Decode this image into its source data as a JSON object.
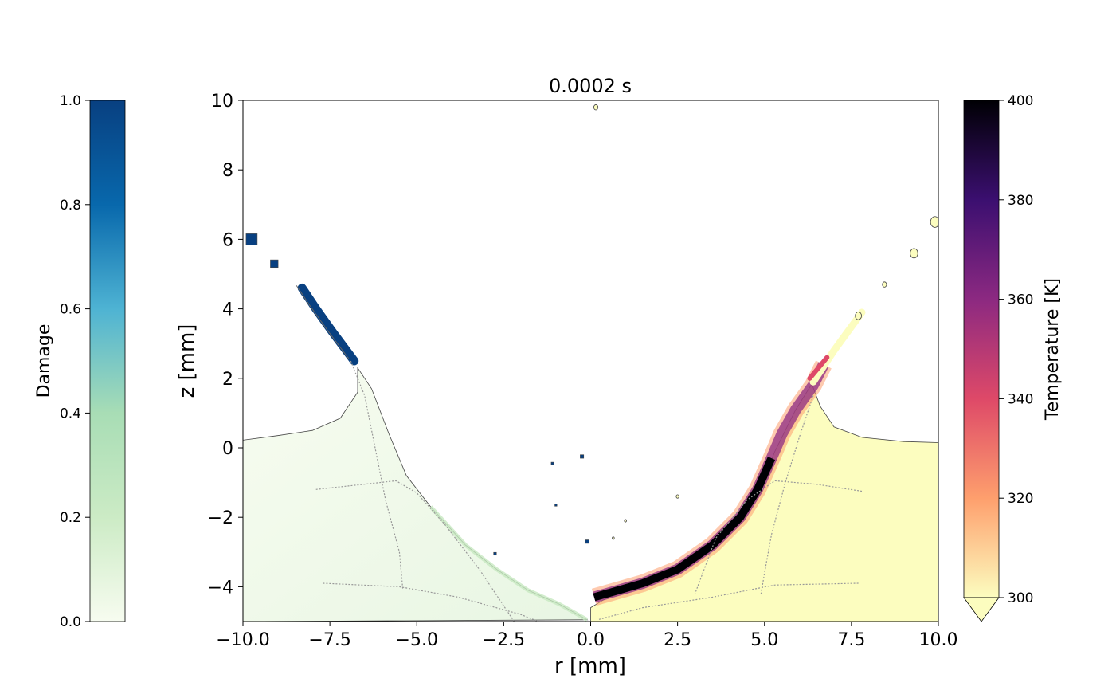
{
  "chart_data": {
    "type": "heatmap",
    "title": "0.0002 s",
    "xlabel": "r [mm]",
    "ylabel": "z [mm]",
    "xlim": [
      -10,
      10
    ],
    "ylim": [
      -5,
      10
    ],
    "x_ticks": [
      -10,
      -7.5,
      -5,
      -2.5,
      0,
      2.5,
      5,
      7.5,
      10
    ],
    "x_tick_labels": [
      "−10.0",
      "−7.5",
      "−5.0",
      "−2.5",
      "0.0",
      "2.5",
      "5.0",
      "7.5",
      "10.0"
    ],
    "y_ticks": [
      -4,
      -2,
      0,
      2,
      4,
      6,
      8,
      10
    ],
    "y_tick_labels": [
      "−4",
      "−2",
      "0",
      "2",
      "4",
      "6",
      "8",
      "10"
    ],
    "grid": false,
    "left_half": {
      "field": "Damage",
      "boundary": [
        [
          -10,
          0.22
        ],
        [
          -9,
          0.35
        ],
        [
          -8,
          0.5
        ],
        [
          -7.2,
          0.85
        ],
        [
          -6.7,
          1.6
        ],
        [
          -6.7,
          2.3
        ],
        [
          -6.3,
          1.7
        ],
        [
          -5.8,
          0.4
        ],
        [
          -5.3,
          -0.8
        ],
        [
          -4.6,
          -1.7
        ],
        [
          -3.6,
          -2.8
        ],
        [
          -2.7,
          -3.5
        ],
        [
          -1.8,
          -4.1
        ],
        [
          -0.9,
          -4.5
        ],
        [
          -0.1,
          -4.95
        ],
        [
          -10,
          -5
        ]
      ],
      "fragment_band": [
        [
          -8.3,
          4.6
        ],
        [
          -7.9,
          4.0
        ],
        [
          -7.4,
          3.3
        ],
        [
          -6.8,
          2.5
        ]
      ],
      "fragments": [
        {
          "r": -9.75,
          "z": 6.0,
          "size": 0.32
        },
        {
          "r": -9.1,
          "z": 5.3,
          "size": 0.22
        },
        {
          "r": -2.75,
          "z": -3.05,
          "size": 0.08
        },
        {
          "r": -1.1,
          "z": -0.45,
          "size": 0.07
        },
        {
          "r": -0.25,
          "z": -0.25,
          "size": 0.1
        },
        {
          "r": -1.0,
          "z": -1.65,
          "size": 0.06
        },
        {
          "r": -0.1,
          "z": -2.7,
          "size": 0.1
        }
      ]
    },
    "right_half": {
      "field": "Temperature [K]",
      "boundary": [
        [
          0,
          -5
        ],
        [
          0,
          -4.6
        ],
        [
          0.5,
          -4.3
        ],
        [
          1.5,
          -4.0
        ],
        [
          2.5,
          -3.6
        ],
        [
          3.5,
          -2.9
        ],
        [
          4.4,
          -2.0
        ],
        [
          4.7,
          -1.4
        ],
        [
          5.1,
          -0.6
        ],
        [
          5.3,
          -0.1
        ],
        [
          5.6,
          0.5
        ],
        [
          5.9,
          1.1
        ],
        [
          6.4,
          1.9
        ],
        [
          6.7,
          2.5
        ],
        [
          6.3,
          2.0
        ],
        [
          6.6,
          1.2
        ],
        [
          7.0,
          0.6
        ],
        [
          7.8,
          0.3
        ],
        [
          9,
          0.18
        ],
        [
          10,
          0.15
        ],
        [
          10,
          -5
        ]
      ],
      "hot_band": [
        [
          0.1,
          -4.3
        ],
        [
          1.5,
          -3.9
        ],
        [
          2.5,
          -3.5
        ],
        [
          3.5,
          -2.8
        ],
        [
          4.3,
          -2.0
        ],
        [
          4.8,
          -1.2
        ],
        [
          5.2,
          -0.3
        ],
        [
          5.5,
          0.4
        ],
        [
          5.9,
          1.1
        ],
        [
          6.4,
          1.8
        ],
        [
          6.7,
          2.4
        ]
      ],
      "fragments": [
        {
          "r": 9.9,
          "z": 6.5,
          "size": 0.25
        },
        {
          "r": 9.3,
          "z": 5.6,
          "size": 0.22
        },
        {
          "r": 8.45,
          "z": 4.7,
          "size": 0.12
        },
        {
          "r": 7.7,
          "z": 3.8,
          "size": 0.18
        },
        {
          "r": 2.5,
          "z": -1.4,
          "size": 0.08
        },
        {
          "r": 1.0,
          "z": -2.1,
          "size": 0.06
        },
        {
          "r": 0.65,
          "z": -2.6,
          "size": 0.06
        },
        {
          "r": 0.15,
          "z": 9.8,
          "size": 0.12
        }
      ]
    },
    "colorbars": [
      {
        "label": "Damage",
        "position": "left",
        "ticks": [
          0.0,
          0.2,
          0.4,
          0.6,
          0.8,
          1.0
        ],
        "tick_labels": [
          "0.0",
          "0.2",
          "0.4",
          "0.6",
          "0.8",
          "1.0"
        ],
        "range": [
          0.0,
          1.0
        ],
        "colormap": [
          "#f7fcf0",
          "#ccebc5",
          "#7bccc4",
          "#4eb3d3",
          "#0868ac",
          "#084081"
        ]
      },
      {
        "label": "Temperature [K]",
        "position": "right",
        "ticks": [
          300,
          320,
          340,
          360,
          380,
          400
        ],
        "tick_labels": [
          "300",
          "320",
          "340",
          "360",
          "380",
          "400"
        ],
        "range": [
          300,
          400
        ],
        "extend": "min",
        "colormap": [
          "#fcfdbf",
          "#fe9f6d",
          "#de4968",
          "#8c2981",
          "#3b0f70",
          "#000004"
        ]
      }
    ]
  }
}
